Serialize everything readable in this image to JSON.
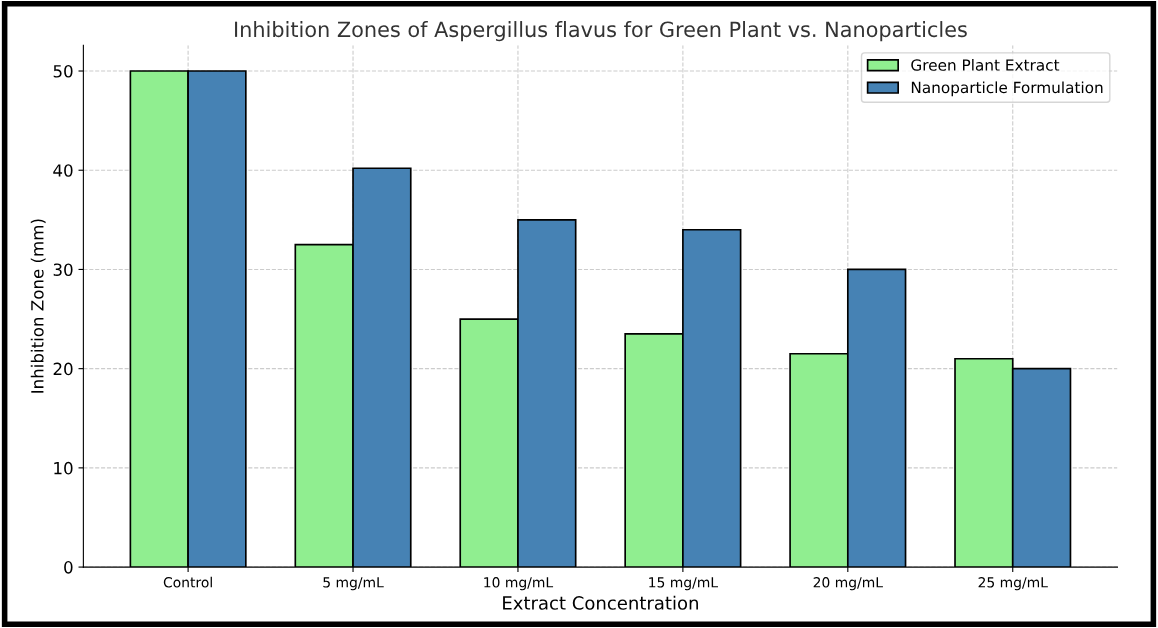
{
  "chart_data": {
    "type": "bar",
    "title": "Inhibition Zones of Aspergillus flavus for Green Plant vs. Nanoparticles",
    "xlabel": "Extract Concentration",
    "ylabel": "Inhibition Zone (mm)",
    "categories": [
      "Control",
      "5 mg/mL",
      "10 mg/mL",
      "15 mg/mL",
      "20 mg/mL",
      "25 mg/mL"
    ],
    "series": [
      {
        "name": "Green Plant Extract",
        "color": "#90ee90",
        "values": [
          50,
          32.5,
          25,
          23.5,
          21.5,
          21
        ]
      },
      {
        "name": "Nanoparticle Formulation",
        "color": "#4682b4",
        "values": [
          50,
          40.2,
          35,
          34,
          30,
          20
        ]
      }
    ],
    "ylim": [
      0,
      52.6
    ],
    "yticks": [
      0,
      10,
      20,
      30,
      40,
      50
    ],
    "grid": true,
    "legend": "top right"
  }
}
